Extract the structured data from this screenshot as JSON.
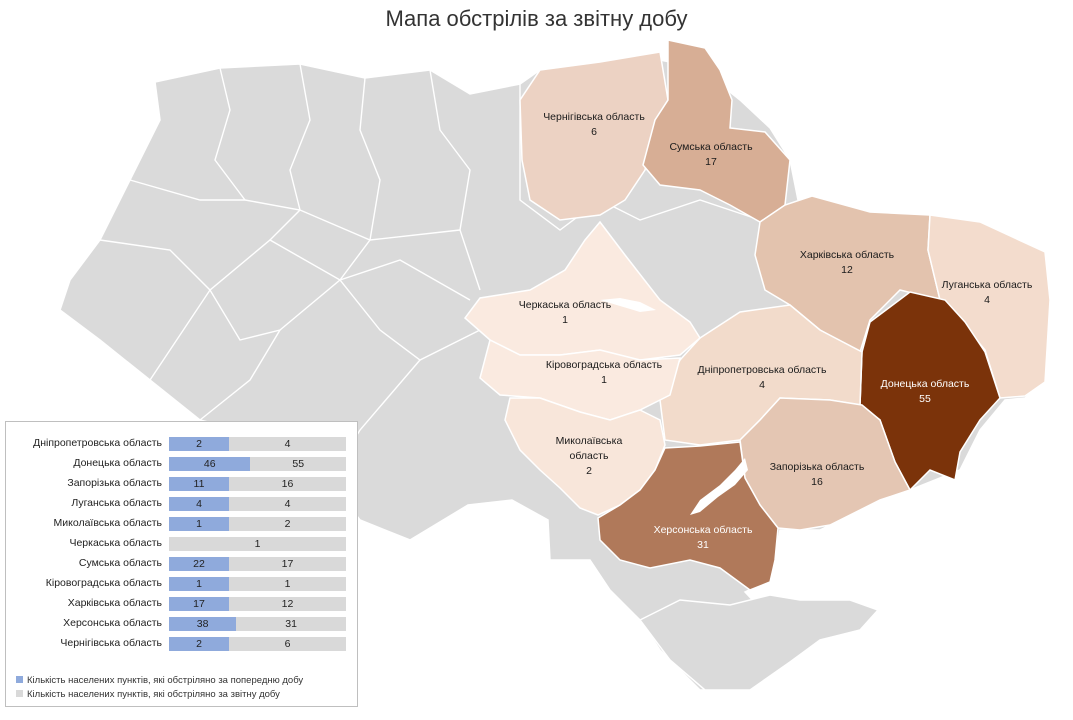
{
  "title": "Мапа обстрілів за звітну добу",
  "colors": {
    "inactive": "#dadada",
    "border": "#ffffff",
    "prev_bar": "#8faadc",
    "track": "#d9d9d9",
    "scale_low": "#f6e3d6",
    "scale_high": "#7b330a"
  },
  "regions": [
    {
      "id": "chernihiv",
      "name_lines": [
        "Чернігівська область"
      ],
      "value": 6
    },
    {
      "id": "sumy",
      "name_lines": [
        "Сумська область"
      ],
      "value": 17
    },
    {
      "id": "kharkiv",
      "name_lines": [
        "Харківська область"
      ],
      "value": 12
    },
    {
      "id": "luhansk",
      "name_lines": [
        "Луганська область"
      ],
      "value": 4
    },
    {
      "id": "cherkasy",
      "name_lines": [
        "Черкаська область"
      ],
      "value": 1
    },
    {
      "id": "kirovohrad",
      "name_lines": [
        "Кіровоградська область"
      ],
      "value": 1
    },
    {
      "id": "dnipro",
      "name_lines": [
        "Дніпропетровська область"
      ],
      "value": 4
    },
    {
      "id": "donetsk",
      "name_lines": [
        "Донецька область"
      ],
      "value": 55
    },
    {
      "id": "mykolaiv",
      "name_lines": [
        "Миколаївська",
        "область"
      ],
      "value": 2
    },
    {
      "id": "zaporizhzhia",
      "name_lines": [
        "Запорізька область"
      ],
      "value": 16
    },
    {
      "id": "kherson",
      "name_lines": [
        "Херсонська область"
      ],
      "value": 31
    }
  ],
  "chart_data": {
    "type": "bar",
    "categories": [
      "Дніпропетровська область",
      "Донецька область",
      "Запорізька область",
      "Луганська область",
      "Миколаївська область",
      "Черкаська область",
      "Сумська область",
      "Кіровоградська область",
      "Харківська область",
      "Херсонська область",
      "Чернігівська область"
    ],
    "series": [
      {
        "name": "Кількість населених пунктів, які обстріляно за попередню добу",
        "values": [
          2,
          46,
          11,
          4,
          1,
          null,
          22,
          1,
          17,
          38,
          2
        ]
      },
      {
        "name": "Кількість населених пунктів, які обстріляно за звітну добу",
        "values": [
          4,
          55,
          16,
          4,
          2,
          1,
          17,
          1,
          12,
          31,
          6
        ]
      }
    ]
  }
}
